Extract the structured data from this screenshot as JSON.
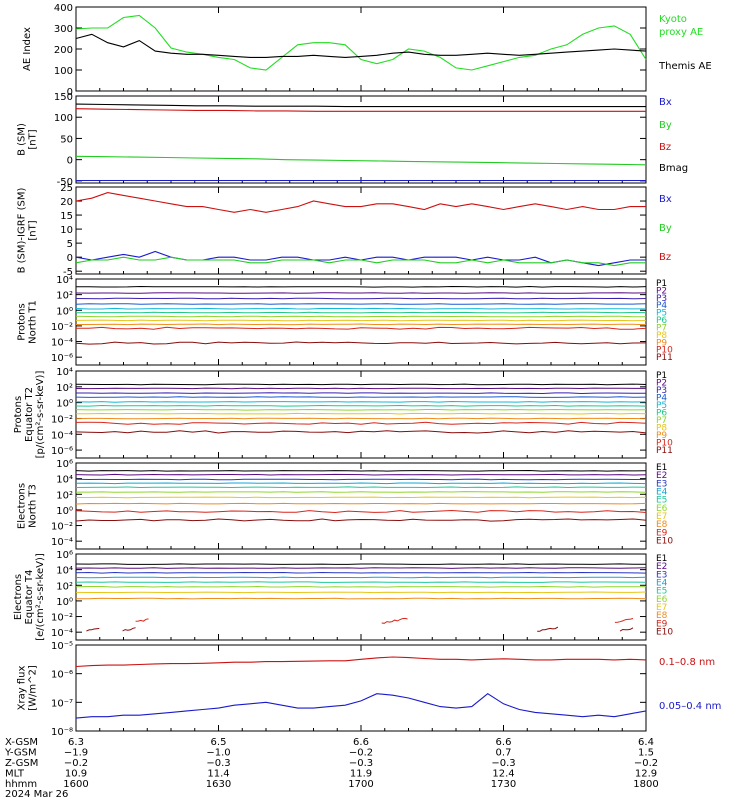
{
  "colors": {
    "black": "#000000",
    "blue": "#1a1acc",
    "green": "#22cc22",
    "red": "#cc1111",
    "kyoto": "#22dd22",
    "p": [
      "#000000",
      "#5a0d82",
      "#3a1fb0",
      "#1a5ad6",
      "#12b8d8",
      "#1ec98a",
      "#8ed62c",
      "#e8c618",
      "#f08c1c",
      "#d8261a",
      "#8a0c0c"
    ],
    "e": [
      "#000000",
      "#5a0d82",
      "#2a36c2",
      "#12a6d8",
      "#1ec99a",
      "#8ed62c",
      "#e8c618",
      "#f08c1c",
      "#d8261a",
      "#8a0c0c"
    ]
  },
  "chart_data": [
    {
      "type": "line",
      "id": "ae",
      "ylabel": "AE Index",
      "ylim": [
        0,
        400
      ],
      "yticks": [
        "0",
        "100",
        "200",
        "300",
        "400"
      ],
      "series": [
        {
          "name": "Kyoto proxy AE",
          "color": "kyoto",
          "values": [
            295,
            300,
            300,
            350,
            360,
            300,
            205,
            185,
            175,
            160,
            150,
            110,
            100,
            160,
            220,
            230,
            230,
            220,
            150,
            130,
            150,
            200,
            190,
            160,
            110,
            100,
            120,
            140,
            160,
            170,
            200,
            220,
            270,
            300,
            310,
            270,
            150
          ]
        },
        {
          "name": "Themis AE",
          "color": "black",
          "values": [
            250,
            270,
            230,
            210,
            240,
            190,
            180,
            175,
            175,
            170,
            165,
            160,
            160,
            165,
            165,
            170,
            165,
            160,
            165,
            170,
            180,
            185,
            175,
            170,
            170,
            175,
            180,
            175,
            170,
            175,
            180,
            185,
            190,
            195,
            200,
            195,
            190
          ]
        }
      ]
    },
    {
      "type": "line",
      "id": "b-sm",
      "ylabel": [
        "B (SM)",
        "[nT]"
      ],
      "ylim": [
        -55,
        150
      ],
      "yticks": [
        "-50",
        "0",
        "50",
        "100",
        "150"
      ],
      "series": [
        {
          "name": "Bx",
          "color": "blue",
          "values": [
            -49,
            -49,
            -49,
            -49,
            -49,
            -49,
            -49,
            -49,
            -49,
            -49,
            -49,
            -49,
            -49,
            -49,
            -49,
            -49,
            -49,
            -49,
            -49,
            -49
          ]
        },
        {
          "name": "By",
          "color": "green",
          "values": [
            8,
            7,
            6,
            5,
            4,
            3,
            2,
            0,
            -1,
            -2,
            -3,
            -4,
            -5,
            -6,
            -7,
            -8,
            -9,
            -10,
            -11,
            -12
          ]
        },
        {
          "name": "Bz",
          "color": "red",
          "values": [
            120,
            119,
            118,
            117,
            116,
            116,
            115,
            115,
            114,
            114,
            114,
            114,
            114,
            114,
            114,
            114,
            114,
            114,
            114,
            114
          ]
        },
        {
          "name": "Bmag",
          "color": "black",
          "values": [
            131,
            130,
            129,
            128,
            127,
            127,
            126,
            126,
            126,
            125,
            125,
            125,
            125,
            125,
            125,
            125,
            125,
            125,
            125,
            125
          ]
        }
      ]
    },
    {
      "type": "line",
      "id": "b-igrf",
      "ylabel": [
        "B (SM)-IGRF (SM)",
        "[nT]"
      ],
      "ylim": [
        -6,
        25
      ],
      "yticks": [
        "-5",
        "0",
        "5",
        "10",
        "15",
        "20",
        "25"
      ],
      "series": [
        {
          "name": "Bx",
          "color": "blue",
          "values": [
            0,
            -1,
            0,
            1,
            0,
            2,
            0,
            -1,
            -1,
            0,
            0,
            -1,
            -1,
            0,
            0,
            -1,
            -1,
            0,
            -1,
            0,
            0,
            -1,
            0,
            0,
            0,
            -1,
            0,
            -1,
            -1,
            0,
            -2,
            -1,
            -2,
            -3,
            -2,
            -1,
            -1
          ]
        },
        {
          "name": "By",
          "color": "green",
          "values": [
            -2,
            -1,
            -1,
            0,
            -1,
            -1,
            0,
            -1,
            -1,
            -1,
            -1,
            -2,
            -2,
            -1,
            -1,
            -1,
            -2,
            -1,
            -1,
            -2,
            -1,
            -1,
            -1,
            -2,
            -2,
            -1,
            -2,
            -1,
            -2,
            -2,
            -2,
            -1,
            -2,
            -2,
            -3,
            -2,
            -2
          ]
        },
        {
          "name": "Bz",
          "color": "red",
          "values": [
            20,
            21,
            23,
            22,
            21,
            20,
            19,
            18,
            18,
            17,
            16,
            17,
            16,
            17,
            18,
            20,
            19,
            18,
            18,
            19,
            19,
            18,
            17,
            19,
            18,
            19,
            18,
            17,
            18,
            19,
            18,
            17,
            18,
            17,
            17,
            18,
            18
          ]
        }
      ]
    },
    {
      "type": "line",
      "id": "p-n1",
      "log": true,
      "ylabel": [
        "Protons",
        "North T1"
      ],
      "ylim": [
        -7,
        4
      ],
      "yticks": [
        "10⁴",
        "10²",
        "10⁰",
        "10⁻²",
        "10⁻⁴",
        "10⁻⁶"
      ],
      "series": [
        {
          "name": "P1",
          "base": 3.0
        },
        {
          "name": "P2",
          "base": 2.2
        },
        {
          "name": "P3",
          "base": 1.5
        },
        {
          "name": "P4",
          "base": 0.8
        },
        {
          "name": "P5",
          "base": 0.2
        },
        {
          "name": "P6",
          "base": -0.3
        },
        {
          "name": "P7",
          "base": -0.8
        },
        {
          "name": "P8",
          "base": -1.3
        },
        {
          "name": "P9",
          "base": -1.8
        },
        {
          "name": "P10",
          "base": -2.3
        },
        {
          "name": "P11",
          "base": -4.2
        }
      ]
    },
    {
      "type": "line",
      "id": "p-eq2",
      "log": true,
      "ylabel": [
        "Protons",
        "Equator T2",
        "[p/(cm²-s-sr-keV)]"
      ],
      "ylim": [
        -7,
        4
      ],
      "yticks": [
        "10⁴",
        "10²",
        "10⁰",
        "10⁻²",
        "10⁻⁴",
        "10⁻⁶"
      ],
      "series": [
        {
          "name": "P1",
          "base": 2.3
        },
        {
          "name": "P2",
          "base": 1.8
        },
        {
          "name": "P3",
          "base": 1.2
        },
        {
          "name": "P4",
          "base": 0.7
        },
        {
          "name": "P5",
          "base": 0.1
        },
        {
          "name": "P6",
          "base": -0.4
        },
        {
          "name": "P7",
          "base": -0.9
        },
        {
          "name": "P8",
          "base": -1.4
        },
        {
          "name": "P9",
          "base": -2.0
        },
        {
          "name": "P10",
          "base": -2.6
        },
        {
          "name": "P11",
          "base": -3.7
        }
      ]
    },
    {
      "type": "line",
      "id": "e-n3",
      "log": true,
      "ylabel": [
        "Electrons",
        "North T3"
      ],
      "ylim": [
        -5,
        6
      ],
      "yticks": [
        "10⁶",
        "10⁴",
        "10²",
        "10⁰",
        "10⁻²",
        "10⁻⁴"
      ],
      "series": [
        {
          "name": "E1",
          "base": 5.0
        },
        {
          "name": "E2",
          "base": 4.5
        },
        {
          "name": "E3",
          "base": 3.9
        },
        {
          "name": "E4",
          "base": 3.4
        },
        {
          "name": "E5",
          "base": 2.9
        },
        {
          "name": "E6",
          "base": 2.3
        },
        {
          "name": "E7",
          "base": 1.6
        },
        {
          "name": "E8",
          "base": 0.8
        },
        {
          "name": "E9",
          "base": -0.2
        },
        {
          "name": "E10",
          "base": -1.3
        }
      ]
    },
    {
      "type": "line",
      "id": "e-eq4",
      "log": true,
      "ylabel": [
        "Electrons",
        "Equator T4",
        "[e/(cm²-s-sr-keV)]"
      ],
      "ylim": [
        -5,
        6
      ],
      "yticks": [
        "10⁶",
        "10⁴",
        "10²",
        "10⁰",
        "10⁻²",
        "10⁻⁴"
      ],
      "series": [
        {
          "name": "E1",
          "base": 4.7
        },
        {
          "name": "E2",
          "base": 4.2
        },
        {
          "name": "E3",
          "base": 3.6
        },
        {
          "name": "E4",
          "base": 3.0
        },
        {
          "name": "E5",
          "base": 2.4
        },
        {
          "name": "E6",
          "base": 1.8
        },
        {
          "name": "E7",
          "base": 1.1
        },
        {
          "name": "E8",
          "base": 0.3
        },
        {
          "name": "E9",
          "base": -2.5
        },
        {
          "name": "E10",
          "base": -3.6
        }
      ]
    },
    {
      "type": "line",
      "id": "xray",
      "log": true,
      "ylabel": [
        "Xray flux",
        "[W/m^2]"
      ],
      "ylim": [
        -8,
        -5
      ],
      "yticks": [
        "10⁻⁵",
        "10⁻⁶",
        "10⁻⁷",
        "10⁻⁸"
      ],
      "series": [
        {
          "name": "0.1–0.8 nm",
          "color": "red",
          "values": [
            -5.75,
            -5.72,
            -5.7,
            -5.7,
            -5.68,
            -5.66,
            -5.65,
            -5.65,
            -5.64,
            -5.62,
            -5.6,
            -5.6,
            -5.58,
            -5.58,
            -5.57,
            -5.56,
            -5.55,
            -5.55,
            -5.5,
            -5.45,
            -5.42,
            -5.44,
            -5.47,
            -5.5,
            -5.5,
            -5.52,
            -5.5,
            -5.48,
            -5.5,
            -5.52,
            -5.52,
            -5.5,
            -5.5,
            -5.5,
            -5.52,
            -5.5,
            -5.52
          ]
        },
        {
          "name": "0.05–0.4 nm",
          "color": "blue",
          "values": [
            -7.55,
            -7.5,
            -7.5,
            -7.45,
            -7.45,
            -7.4,
            -7.35,
            -7.3,
            -7.25,
            -7.2,
            -7.1,
            -7.05,
            -7.0,
            -7.1,
            -7.2,
            -7.2,
            -7.15,
            -7.1,
            -6.95,
            -6.7,
            -6.75,
            -6.85,
            -7.0,
            -7.15,
            -7.2,
            -7.15,
            -6.7,
            -7.05,
            -7.25,
            -7.35,
            -7.4,
            -7.45,
            -7.5,
            -7.45,
            -7.5,
            -7.4,
            -7.3
          ]
        }
      ]
    }
  ],
  "labels": {
    "ae": [
      {
        "text": "Kyoto",
        "color": "kyoto"
      },
      {
        "text": "proxy AE",
        "color": "kyoto"
      },
      {
        "text": "Themis AE",
        "color": "black"
      }
    ],
    "bsm": [
      {
        "text": "Bx",
        "color": "blue"
      },
      {
        "text": "By",
        "color": "green"
      },
      {
        "text": "Bz",
        "color": "red"
      },
      {
        "text": "Bmag",
        "color": "black"
      }
    ],
    "bigrf": [
      {
        "text": "Bx",
        "color": "blue"
      },
      {
        "text": "By",
        "color": "green"
      },
      {
        "text": "Bz",
        "color": "red"
      }
    ],
    "xray": [
      {
        "text": "0.1–0.8 nm",
        "color": "red"
      },
      {
        "text": "0.05–0.4 nm",
        "color": "blue"
      }
    ]
  },
  "footer": {
    "rows": [
      {
        "name": "X-GSM",
        "values": [
          "6.3",
          "6.5",
          "6.6",
          "6.6",
          "6.4"
        ]
      },
      {
        "name": "Y-GSM",
        "values": [
          "−1.9",
          "−1.0",
          "−0.2",
          "0.7",
          "1.5"
        ]
      },
      {
        "name": "Z-GSM",
        "values": [
          "−0.2",
          "−0.3",
          "−0.3",
          "−0.3",
          "−0.2"
        ]
      },
      {
        "name": "MLT",
        "values": [
          "10.9",
          "11.4",
          "11.9",
          "12.4",
          "12.9"
        ]
      },
      {
        "name": "hhmm",
        "values": [
          "1600",
          "1630",
          "1700",
          "1730",
          "1800"
        ]
      }
    ],
    "date": "2024 Mar 26"
  }
}
